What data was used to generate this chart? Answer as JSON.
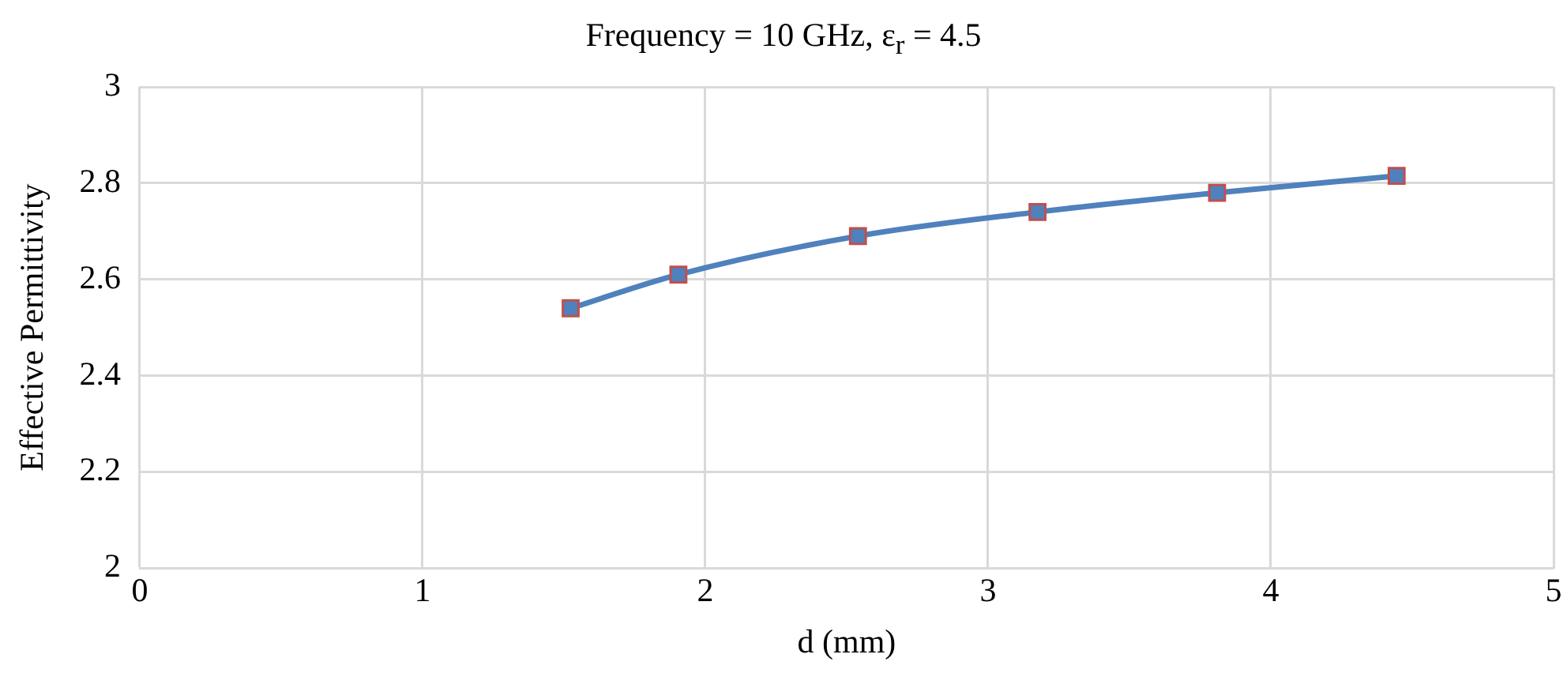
{
  "chart_data": {
    "type": "line",
    "title": "Frequency = 10 GHz, ε$_{r}$ = 4.5",
    "xlabel": "d (mm)",
    "ylabel": "Effective Permittivity",
    "x": [
      1.524,
      1.905,
      2.54,
      3.175,
      3.81,
      4.445
    ],
    "series": [
      {
        "color": "#4f81bd",
        "values": [
          2.54,
          2.61,
          2.69,
          2.74,
          2.78,
          2.815
        ]
      }
    ],
    "xlim": [
      0,
      5
    ],
    "xticks": [
      0,
      1,
      2,
      3,
      4,
      5
    ],
    "ylim": [
      2,
      3
    ],
    "yticks": [
      2,
      2.2,
      2.4,
      2.6,
      2.8,
      3
    ],
    "grid": true,
    "legend": false,
    "marker": "square",
    "line_style": "solid"
  }
}
